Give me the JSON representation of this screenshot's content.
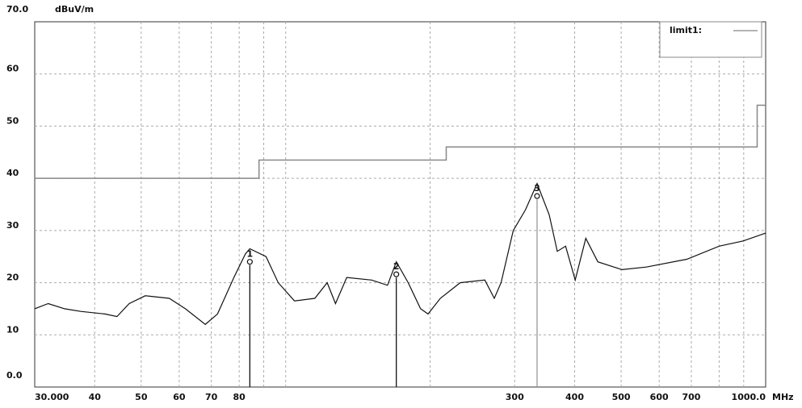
{
  "chart_data": {
    "type": "line",
    "log_x": true,
    "grid": true,
    "y_unit": "dBuV/m",
    "x_unit": "MHz",
    "xlim": [
      30,
      1000
    ],
    "ylim": [
      0,
      70
    ],
    "xticks": [
      {
        "value": 30,
        "label": "30.000"
      },
      40,
      50,
      60,
      70,
      80,
      300,
      400,
      500,
      600,
      700,
      {
        "value": 1000,
        "label": "1000.0"
      }
    ],
    "xgrid": [
      90,
      100,
      200,
      800,
      900
    ],
    "yticks": [
      {
        "value": 0,
        "label": "0.0"
      },
      10,
      20,
      30,
      40,
      50,
      60,
      {
        "value": 70,
        "label": "70.0"
      }
    ],
    "legend": "top-right",
    "series": [
      {
        "name": "limit1:",
        "color": "#888888",
        "x": [
          30,
          88,
          88,
          216,
          216,
          960,
          960,
          1000
        ],
        "values": [
          40,
          40,
          43.5,
          43.5,
          46,
          46,
          54,
          54
        ]
      },
      {
        "color": "#111111",
        "x": [
          30,
          32.0,
          34.6,
          37.4,
          42.0,
          44.5,
          47.2,
          51.0,
          57.2,
          61.8,
          68.0,
          72.1,
          78.0,
          82.4,
          84.2,
          91.0,
          96.5,
          104.3,
          115,
          122,
          127,
          134,
          151,
          163,
          170,
          180,
          191,
          198,
          210,
          231,
          260,
          272,
          281,
          298,
          316,
          334,
          354,
          368,
          383,
          401,
          422,
          447,
          502,
          564,
          685,
          800,
          898,
          1000
        ],
        "values": [
          15,
          16,
          15,
          14.5,
          14,
          13.5,
          16,
          17.5,
          17,
          15,
          12,
          14,
          21,
          25.5,
          26.5,
          25,
          20,
          16.5,
          17,
          20,
          16,
          21,
          20.5,
          19.5,
          24,
          20,
          15,
          14,
          17,
          20,
          20.5,
          17,
          20,
          30,
          34,
          39,
          33,
          26,
          27,
          20.5,
          28.5,
          24,
          22.5,
          23,
          24.5,
          27,
          28,
          29.5
        ]
      }
    ],
    "markers": [
      {
        "label": "1",
        "x": 84.2,
        "y": 24,
        "color": "#111111"
      },
      {
        "label": "2",
        "x": 170,
        "y": 21.6,
        "color": "#111111"
      },
      {
        "label": "3",
        "x": 334,
        "y": 36.6,
        "color": "#999999"
      }
    ]
  }
}
